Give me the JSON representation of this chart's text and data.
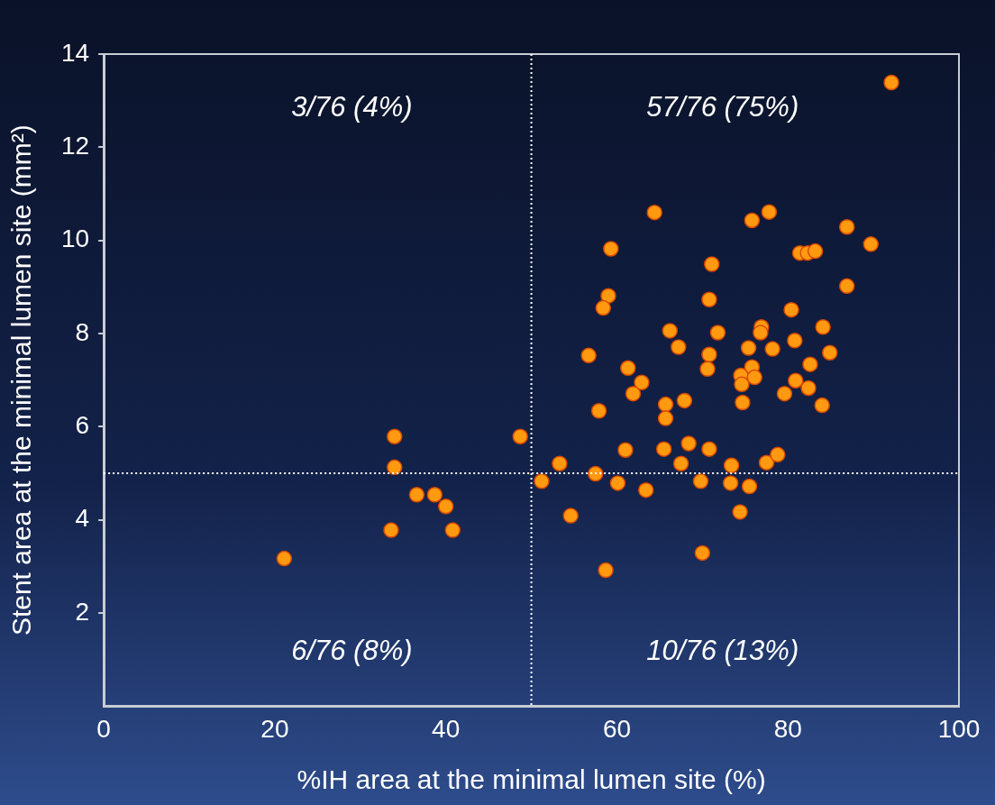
{
  "chart_data": {
    "type": "scatter",
    "xlabel": "%IH area at the minimal lumen site (%)",
    "ylabel": "Stent area at the minimal lumen site (mm²)",
    "annotations": [
      "3/76 (4%)",
      "57/76 (75%)",
      "6/76 (8%)",
      "10/76 (13%)"
    ],
    "xlim": [
      0,
      100
    ],
    "xticks": [
      0,
      20,
      40,
      60,
      80,
      100
    ],
    "ylim": [
      0,
      14
    ],
    "yticks": [
      2,
      4,
      6,
      8,
      10,
      12,
      14
    ],
    "grid": false,
    "legend": false,
    "marker": "circle",
    "ref_lines": [
      {
        "axis": "x",
        "value": 50,
        "color": "#ffffff",
        "line_style": "dotted"
      },
      {
        "axis": "y",
        "value": 5,
        "color": "#ffffff",
        "line_style": "dotted"
      }
    ],
    "series": [
      {
        "color": "#ff9a10",
        "x": [
          21.1,
          34.0,
          34.0,
          33.6,
          36.6,
          38.7,
          40.0,
          40.8,
          48.7,
          51.2,
          60.1,
          63.4,
          54.6,
          70.0,
          58.7,
          69.8,
          73.3,
          75.5,
          74.4,
          64.4,
          59.3,
          71.1,
          59.0,
          58.4,
          70.8,
          66.2,
          67.2,
          71.8,
          70.8,
          70.6,
          56.7,
          61.3,
          62.9,
          61.9,
          57.9,
          65.7,
          65.7,
          67.9,
          61.0,
          65.5,
          68.4,
          70.8,
          53.3,
          67.5,
          57.5,
          92.1,
          77.8,
          75.8,
          86.9,
          89.7,
          81.4,
          82.3,
          83.2,
          86.9,
          80.4,
          76.9,
          76.8,
          80.8,
          84.1,
          78.2,
          75.4,
          84.9,
          82.6,
          75.8,
          74.5,
          76.1,
          74.6,
          80.9,
          82.4,
          79.6,
          84.0,
          74.7,
          73.4,
          77.5,
          78.8
        ],
        "values": [
          3.17,
          5.79,
          5.13,
          3.78,
          4.54,
          4.54,
          4.29,
          3.78,
          5.79,
          4.83,
          4.79,
          4.64,
          4.09,
          3.29,
          2.92,
          4.83,
          4.79,
          4.72,
          4.17,
          10.6,
          9.82,
          9.49,
          8.81,
          8.55,
          8.73,
          8.06,
          7.71,
          8.02,
          7.55,
          7.24,
          7.53,
          7.26,
          6.95,
          6.71,
          6.34,
          6.48,
          6.18,
          6.56,
          5.5,
          5.52,
          5.64,
          5.52,
          5.21,
          5.21,
          4.99,
          13.39,
          10.61,
          10.43,
          10.29,
          9.92,
          9.73,
          9.73,
          9.77,
          9.02,
          8.51,
          8.14,
          8.02,
          7.85,
          8.14,
          7.67,
          7.69,
          7.59,
          7.34,
          7.28,
          7.1,
          7.06,
          6.91,
          6.99,
          6.83,
          6.71,
          6.46,
          6.52,
          5.17,
          5.23,
          5.4
        ]
      }
    ]
  }
}
